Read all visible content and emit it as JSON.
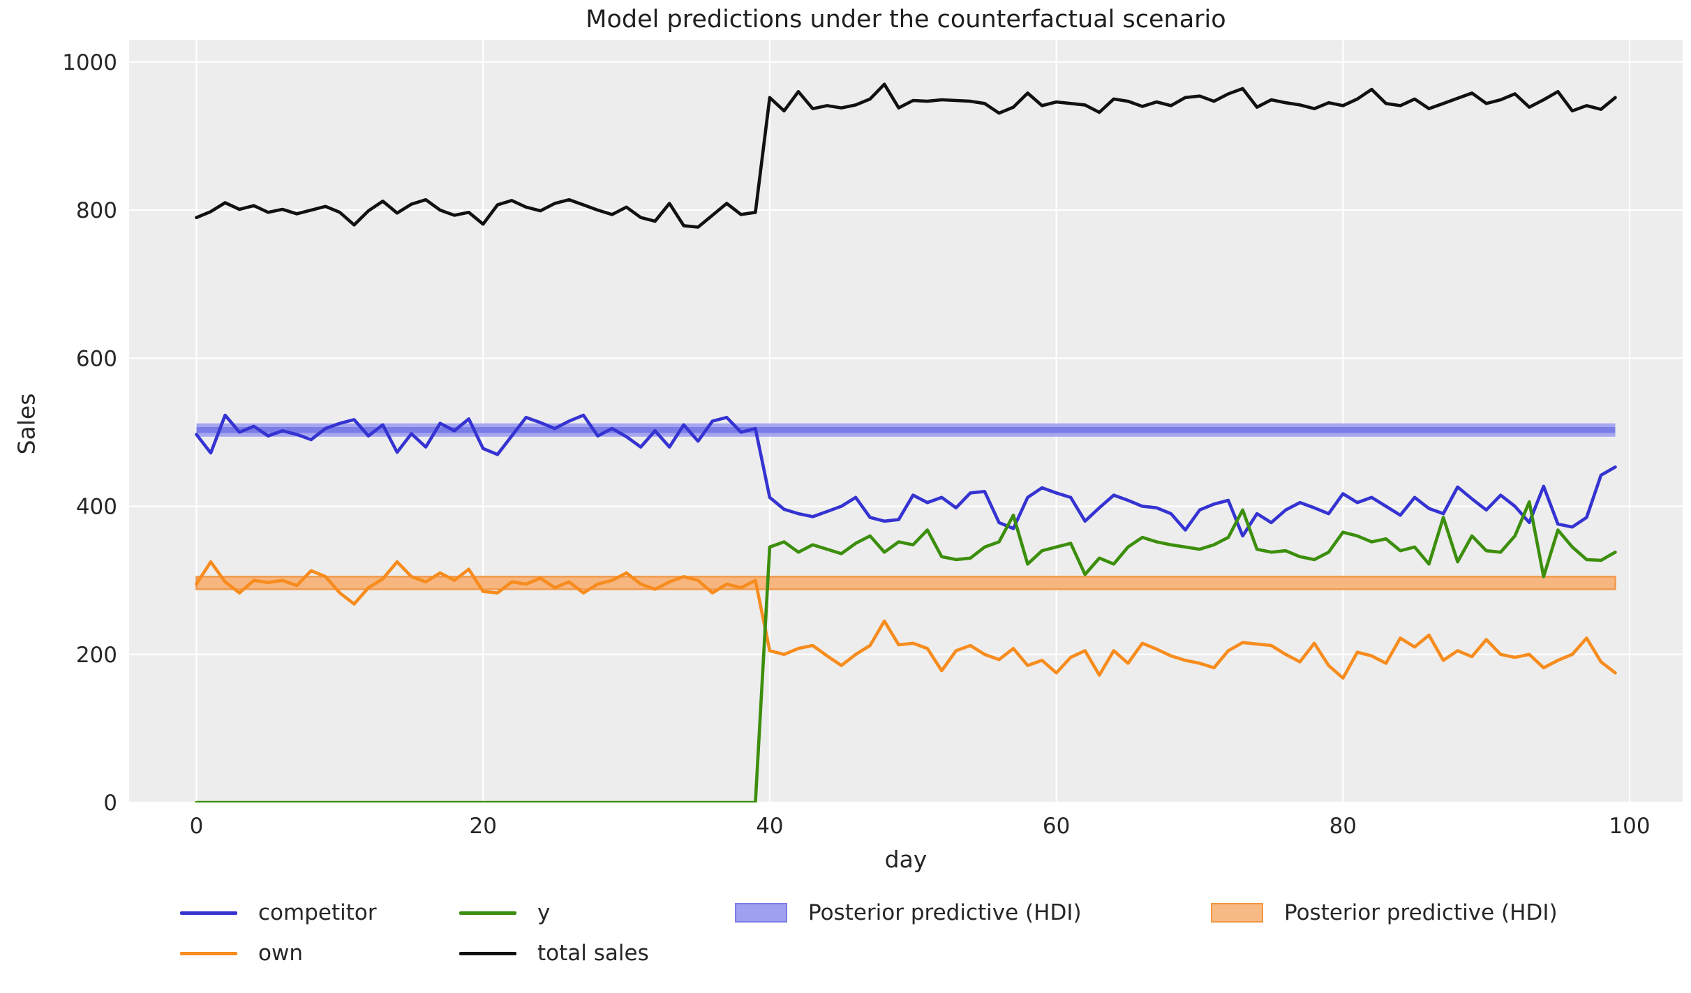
{
  "title": "Model predictions under the counterfactual scenario",
  "chart_data": {
    "type": "line",
    "title": "Model predictions under the counterfactual scenario",
    "xlabel": "day",
    "ylabel": "Sales",
    "xlim": [
      -4.7,
      103.7
    ],
    "ylim": [
      0,
      1030
    ],
    "x_ticks": [
      0,
      20,
      40,
      60,
      80,
      100
    ],
    "y_ticks": [
      0,
      200,
      400,
      600,
      800,
      1000
    ],
    "grid": true,
    "plot_background": "#ededed",
    "grid_color": "#ffffff",
    "text_color": "#262626",
    "x": [
      0,
      1,
      2,
      3,
      4,
      5,
      6,
      7,
      8,
      9,
      10,
      11,
      12,
      13,
      14,
      15,
      16,
      17,
      18,
      19,
      20,
      21,
      22,
      23,
      24,
      25,
      26,
      27,
      28,
      29,
      30,
      31,
      32,
      33,
      34,
      35,
      36,
      37,
      38,
      39,
      40,
      41,
      42,
      43,
      44,
      45,
      46,
      47,
      48,
      49,
      50,
      51,
      52,
      53,
      54,
      55,
      56,
      57,
      58,
      59,
      60,
      61,
      62,
      63,
      64,
      65,
      66,
      67,
      68,
      69,
      70,
      71,
      72,
      73,
      74,
      75,
      76,
      77,
      78,
      79,
      80,
      81,
      82,
      83,
      84,
      85,
      86,
      87,
      88,
      89,
      90,
      91,
      92,
      93,
      94,
      95,
      96,
      97,
      98,
      99
    ],
    "series": [
      {
        "name": "competitor",
        "color": "#3533d1",
        "values": [
          497,
          472,
          523,
          500,
          508,
          495,
          502,
          497,
          490,
          505,
          512,
          517,
          495,
          510,
          473,
          498,
          480,
          512,
          502,
          518,
          478,
          470,
          495,
          520,
          513,
          505,
          515,
          523,
          495,
          505,
          494,
          480,
          502,
          480,
          510,
          488,
          515,
          520,
          500,
          505,
          412,
          396,
          390,
          386,
          393,
          400,
          412,
          385,
          380,
          382,
          415,
          405,
          412,
          398,
          418,
          420,
          378,
          370,
          412,
          425,
          418,
          412,
          380,
          398,
          415,
          408,
          400,
          398,
          390,
          368,
          395,
          403,
          408,
          360,
          390,
          378,
          395,
          405,
          398,
          390,
          417,
          405,
          412,
          400,
          388,
          412,
          397,
          390,
          426,
          410,
          395,
          415,
          400,
          378,
          427,
          376,
          372,
          385,
          442,
          453
        ]
      },
      {
        "name": "own",
        "color": "#f78c1e",
        "values": [
          295,
          325,
          298,
          283,
          300,
          297,
          300,
          293,
          313,
          305,
          283,
          268,
          290,
          302,
          325,
          305,
          298,
          310,
          300,
          315,
          285,
          283,
          298,
          295,
          303,
          290,
          298,
          283,
          295,
          300,
          310,
          295,
          288,
          298,
          305,
          300,
          283,
          295,
          290,
          300,
          205,
          200,
          208,
          212,
          198,
          185,
          200,
          212,
          245,
          213,
          215,
          208,
          178,
          205,
          212,
          200,
          193,
          208,
          185,
          192,
          175,
          196,
          205,
          172,
          205,
          188,
          215,
          207,
          198,
          192,
          188,
          182,
          205,
          216,
          214,
          212,
          200,
          190,
          215,
          185,
          168,
          203,
          198,
          188,
          222,
          210,
          226,
          192,
          205,
          197,
          220,
          200,
          196,
          200,
          182,
          192,
          200,
          222,
          190,
          175
        ]
      },
      {
        "name": "y",
        "color": "#3c8e0d",
        "values": [
          0,
          0,
          0,
          0,
          0,
          0,
          0,
          0,
          0,
          0,
          0,
          0,
          0,
          0,
          0,
          0,
          0,
          0,
          0,
          0,
          0,
          0,
          0,
          0,
          0,
          0,
          0,
          0,
          0,
          0,
          0,
          0,
          0,
          0,
          0,
          0,
          0,
          0,
          0,
          0,
          345,
          352,
          338,
          348,
          342,
          336,
          350,
          360,
          338,
          352,
          348,
          368,
          332,
          328,
          330,
          345,
          352,
          388,
          322,
          340,
          345,
          350,
          308,
          330,
          322,
          345,
          358,
          352,
          348,
          345,
          342,
          348,
          358,
          395,
          342,
          338,
          340,
          332,
          328,
          338,
          365,
          360,
          352,
          356,
          340,
          345,
          322,
          385,
          325,
          360,
          340,
          338,
          360,
          406,
          305,
          368,
          345,
          328,
          327,
          338
        ]
      },
      {
        "name": "total sales",
        "color": "#111111",
        "values": [
          790,
          798,
          810,
          801,
          806,
          797,
          801,
          795,
          800,
          805,
          797,
          780,
          799,
          812,
          796,
          808,
          814,
          800,
          793,
          797,
          781,
          807,
          813,
          804,
          799,
          809,
          814,
          807,
          800,
          794,
          804,
          790,
          785,
          809,
          779,
          777,
          793,
          809,
          794,
          797,
          952,
          934,
          960,
          937,
          941,
          938,
          942,
          950,
          970,
          938,
          948,
          947,
          949,
          948,
          947,
          944,
          931,
          939,
          958,
          941,
          946,
          944,
          942,
          932,
          950,
          947,
          940,
          946,
          941,
          952,
          954,
          947,
          957,
          964,
          939,
          949,
          945,
          942,
          937,
          945,
          941,
          950,
          963,
          944,
          941,
          950,
          937,
          944,
          951,
          958,
          944,
          949,
          957,
          939,
          949,
          960,
          934,
          941,
          936,
          952
        ]
      }
    ],
    "hdi_bands": [
      {
        "label": "Posterior predictive (HDI)",
        "series": "competitor",
        "lo": 494,
        "hi": 512,
        "core_lo": 499,
        "core_hi": 507,
        "fill": "#a6a7f0",
        "core_fill": "#7b7de6"
      },
      {
        "label": "Posterior predictive (HDI)",
        "series": "own",
        "lo": 288,
        "hi": 305,
        "fill": "#f7b67f",
        "edge": "#f09a4e"
      }
    ],
    "legend": {
      "position": "below-axes",
      "items": [
        {
          "label": "competitor",
          "swatch": "line",
          "color": "#3533d1"
        },
        {
          "label": "own",
          "swatch": "line",
          "color": "#f78c1e"
        },
        {
          "label": "y",
          "swatch": "line",
          "color": "#3c8e0d"
        },
        {
          "label": "total sales",
          "swatch": "line",
          "color": "#111111"
        },
        {
          "label": "Posterior predictive (HDI)",
          "swatch": "patch",
          "color": "#9fa0ef",
          "edge": "#7b7de6"
        },
        {
          "label": "Posterior predictive (HDI)",
          "swatch": "patch",
          "color": "#f8ba84",
          "edge": "#f0953f"
        }
      ]
    }
  }
}
